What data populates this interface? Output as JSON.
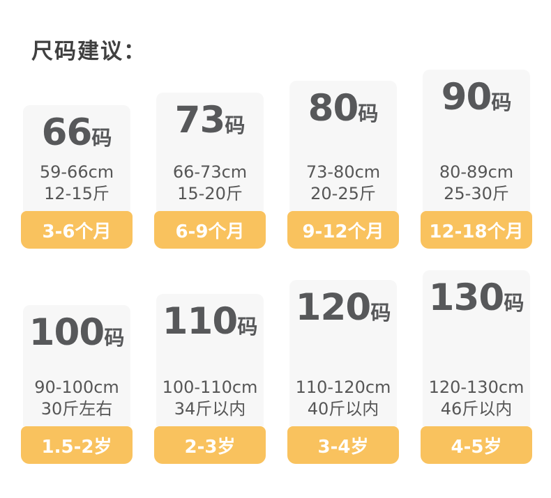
{
  "title": "尺码建议：",
  "theme": {
    "page_bg": "#ffffff",
    "card_bg": "#f7f7f7",
    "badge_bg": "#f9c25e",
    "title_color": "#404040",
    "number_color": "#57585a",
    "text_color": "#565656",
    "badge_text_color": "#ffffff"
  },
  "cards": [
    {
      "size": "66",
      "unit": "码",
      "height_range": "59-66cm",
      "weight": "12-15斤",
      "age": "3-6个月"
    },
    {
      "size": "73",
      "unit": "码",
      "height_range": "66-73cm",
      "weight": "15-20斤",
      "age": "6-9个月"
    },
    {
      "size": "80",
      "unit": "码",
      "height_range": "73-80cm",
      "weight": "20-25斤",
      "age": "9-12个月"
    },
    {
      "size": "90",
      "unit": "码",
      "height_range": "80-89cm",
      "weight": "25-30斤",
      "age": "12-18个月"
    },
    {
      "size": "100",
      "unit": "码",
      "height_range": "90-100cm",
      "weight": "30斤左右",
      "age": "1.5-2岁"
    },
    {
      "size": "110",
      "unit": "码",
      "height_range": "100-110cm",
      "weight": "34斤以内",
      "age": "2-3岁"
    },
    {
      "size": "120",
      "unit": "码",
      "height_range": "110-120cm",
      "weight": "40斤以内",
      "age": "3-4岁"
    },
    {
      "size": "130",
      "unit": "码",
      "height_range": "120-130cm",
      "weight": "46斤以内",
      "age": "4-5岁"
    }
  ]
}
